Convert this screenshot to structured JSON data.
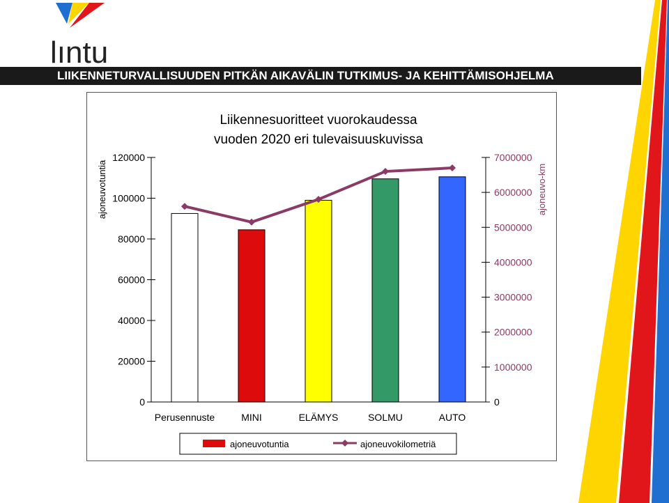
{
  "header": {
    "logo_text": "lıntu",
    "banner_text": "LIIKENNETURVALLISUUDEN PITKÄN AIKAVÄLIN TUTKIMUS- JA KEHITTÄMISOHJELMA"
  },
  "colors": {
    "line": "#8b3a66",
    "axis": "#000000",
    "banner_bg": "#1a1a1a"
  },
  "chart_data": {
    "type": "bar",
    "title": "Liikennesuoritteet vuorokaudessa vuoden 2020 eri tulevaisuuskuvissa",
    "title_lines": [
      "Liikennesuoritteet vuorokaudessa",
      "vuoden 2020 eri tulevaisuuskuvissa"
    ],
    "categories": [
      "Perusennuste",
      "MINI",
      "ELÄMYS",
      "SOLMU",
      "AUTO"
    ],
    "bar_colors": [
      "#ffffff",
      "#dd0b0b",
      "#ffff00",
      "#339966",
      "#3366ff"
    ],
    "ylabel": "ajoneuvotuntia",
    "y2label": "ajoneuvo-km",
    "ylim": [
      0,
      120000
    ],
    "y2lim": [
      0,
      7000000
    ],
    "yticks": [
      "0",
      "20000",
      "40000",
      "60000",
      "80000",
      "100000",
      "120000"
    ],
    "y2ticks": [
      "0",
      "1000000",
      "2000000",
      "3000000",
      "4000000",
      "5000000",
      "6000000",
      "7000000"
    ],
    "series": [
      {
        "name": "ajoneuvotuntia",
        "type": "bar",
        "axis": "left",
        "values": [
          92500,
          84500,
          99000,
          109500,
          110500
        ]
      },
      {
        "name": "ajoneuvokilometriä",
        "type": "line",
        "axis": "right",
        "values": [
          5600000,
          5150000,
          5800000,
          6600000,
          6700000
        ]
      }
    ],
    "legend": {
      "position": "bottom",
      "entries": [
        {
          "label": "ajoneuvotuntia",
          "color": "#dd0b0b"
        },
        {
          "label": "ajoneuvokilometriä",
          "color": "#8b3a66"
        }
      ]
    },
    "grid": false
  }
}
